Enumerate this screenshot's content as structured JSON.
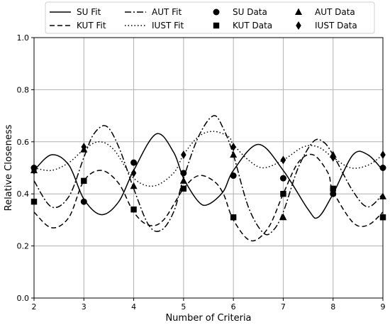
{
  "chart_data": {
    "type": "line",
    "xlabel": "Number of Criteria",
    "ylabel": "Relative Closeness",
    "xlim": [
      2,
      9
    ],
    "ylim": [
      0.0,
      1.0
    ],
    "xticks": [
      "2",
      "3",
      "4",
      "5",
      "6",
      "7",
      "8",
      "9"
    ],
    "yticks": [
      "0.0",
      "0.2",
      "0.4",
      "0.6",
      "0.8",
      "1.0"
    ],
    "grid": true,
    "legend_position": "top",
    "legend_columns": 4,
    "x": [
      2,
      3,
      4,
      5,
      6,
      7,
      8,
      9
    ],
    "series": [
      {
        "name": "SU Data",
        "marker": "circle",
        "values": [
          0.5,
          0.37,
          0.52,
          0.48,
          0.47,
          0.46,
          0.4,
          0.5
        ]
      },
      {
        "name": "KUT Data",
        "marker": "square",
        "values": [
          0.37,
          0.45,
          0.34,
          0.42,
          0.31,
          0.4,
          0.42,
          0.31
        ]
      },
      {
        "name": "AUT Data",
        "marker": "triangle",
        "values": [
          0.49,
          0.57,
          0.43,
          0.45,
          0.55,
          0.31,
          0.55,
          0.39
        ]
      },
      {
        "name": "IUST Data",
        "marker": "diamond",
        "values": [
          0.49,
          0.58,
          0.48,
          0.55,
          0.58,
          0.53,
          0.54,
          0.55
        ]
      }
    ],
    "fits": [
      {
        "name": "SU Fit",
        "style": "solid",
        "x": [
          2,
          2.35,
          2.7,
          3,
          3.35,
          3.7,
          4,
          4.45,
          4.8,
          5,
          5.3,
          5.5,
          5.8,
          6,
          6.5,
          7,
          7.5,
          7.7,
          8,
          8.4,
          8.7,
          9
        ],
        "y": [
          0.49,
          0.55,
          0.51,
          0.38,
          0.32,
          0.37,
          0.49,
          0.63,
          0.56,
          0.46,
          0.37,
          0.36,
          0.41,
          0.49,
          0.59,
          0.49,
          0.34,
          0.31,
          0.4,
          0.55,
          0.55,
          0.49
        ]
      },
      {
        "name": "KUT Fit",
        "style": "dashed",
        "x": [
          2,
          2.35,
          2.7,
          3,
          3.35,
          3.7,
          4,
          4.3,
          4.6,
          5,
          5.3,
          5.6,
          5.8,
          6,
          6.35,
          6.7,
          7,
          7.3,
          7.6,
          7.9,
          8,
          8.4,
          8.7,
          9
        ],
        "y": [
          0.33,
          0.27,
          0.31,
          0.45,
          0.49,
          0.44,
          0.33,
          0.28,
          0.3,
          0.42,
          0.47,
          0.45,
          0.4,
          0.3,
          0.22,
          0.27,
          0.4,
          0.52,
          0.55,
          0.48,
          0.41,
          0.29,
          0.28,
          0.33
        ]
      },
      {
        "name": "AUT Fit",
        "style": "dashdot",
        "x": [
          2,
          2.35,
          2.7,
          3,
          3.2,
          3.45,
          3.7,
          4,
          4.3,
          4.55,
          4.8,
          5,
          5.3,
          5.6,
          5.8,
          6,
          6.3,
          6.6,
          6.8,
          7,
          7.3,
          7.6,
          7.8,
          8,
          8.4,
          8.7,
          9
        ],
        "y": [
          0.45,
          0.35,
          0.39,
          0.54,
          0.63,
          0.66,
          0.58,
          0.42,
          0.28,
          0.26,
          0.33,
          0.46,
          0.62,
          0.7,
          0.65,
          0.55,
          0.35,
          0.25,
          0.26,
          0.33,
          0.5,
          0.6,
          0.6,
          0.55,
          0.41,
          0.35,
          0.4
        ]
      },
      {
        "name": "IUST Fit",
        "style": "dotted",
        "x": [
          2,
          2.35,
          2.7,
          3,
          3.3,
          3.6,
          4,
          4.4,
          4.8,
          5,
          5.3,
          5.6,
          5.9,
          6,
          6.3,
          6.6,
          7,
          7.4,
          7.7,
          8,
          8.35,
          8.7,
          9
        ],
        "y": [
          0.5,
          0.49,
          0.52,
          0.57,
          0.6,
          0.57,
          0.46,
          0.43,
          0.48,
          0.55,
          0.62,
          0.64,
          0.62,
          0.59,
          0.53,
          0.5,
          0.53,
          0.58,
          0.58,
          0.54,
          0.5,
          0.51,
          0.55
        ]
      }
    ]
  },
  "legend": [
    {
      "label": "SU Fit",
      "kind": "line",
      "style": "solid"
    },
    {
      "label": "AUT Fit",
      "kind": "line",
      "style": "dashdot"
    },
    {
      "label": "SU Data",
      "kind": "marker",
      "marker": "circle"
    },
    {
      "label": "AUT Data",
      "kind": "marker",
      "marker": "triangle"
    },
    {
      "label": "KUT Fit",
      "kind": "line",
      "style": "dashed"
    },
    {
      "label": "IUST Fit",
      "kind": "line",
      "style": "dotted"
    },
    {
      "label": "KUT Data",
      "kind": "marker",
      "marker": "square"
    },
    {
      "label": "IUST Data",
      "kind": "marker",
      "marker": "diamond"
    }
  ],
  "colors": {
    "line": "#000000",
    "grid": "#b0b0b0",
    "background": "#ffffff"
  }
}
